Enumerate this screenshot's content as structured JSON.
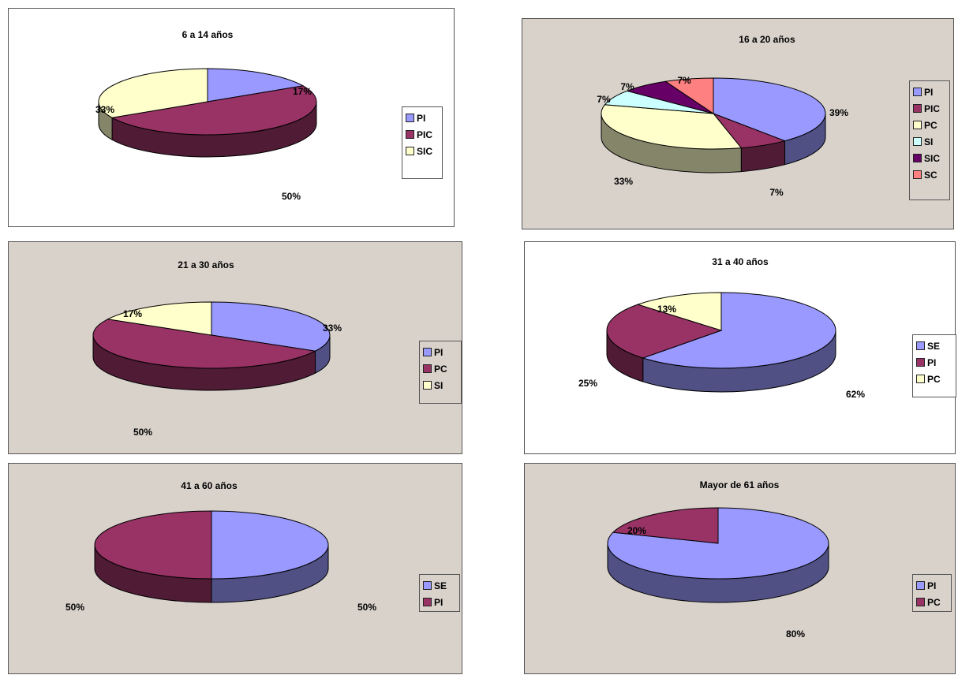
{
  "chart_data": [
    {
      "type": "pie",
      "title": "6 a 14 años",
      "categories": [
        "PI",
        "PIC",
        "SIC"
      ],
      "values": [
        17,
        50,
        33
      ],
      "labels": [
        "17%",
        "50%",
        "33%"
      ],
      "colors": [
        "#9999FF",
        "#993366",
        "#FFFFCC"
      ],
      "legend": "right",
      "background": "#FFFFFF"
    },
    {
      "type": "pie",
      "title": "16 a 20 años",
      "categories": [
        "PI",
        "PIC",
        "PC",
        "SI",
        "SIC",
        "SC"
      ],
      "values": [
        39,
        7,
        33,
        7,
        7,
        7
      ],
      "labels": [
        "39%",
        "7%",
        "33%",
        "7%",
        "7%",
        "7%"
      ],
      "colors": [
        "#9999FF",
        "#993366",
        "#FFFFCC",
        "#CCFFFF",
        "#660066",
        "#FF8080"
      ],
      "legend": "right",
      "background": "#D9D2CB"
    },
    {
      "type": "pie",
      "title": "21 a 30 años",
      "categories": [
        "PI",
        "PC",
        "SI"
      ],
      "values": [
        33,
        50,
        17
      ],
      "labels": [
        "33%",
        "50%",
        "17%"
      ],
      "colors": [
        "#9999FF",
        "#993366",
        "#FFFFCC"
      ],
      "legend": "right",
      "background": "#D9D2CB"
    },
    {
      "type": "pie",
      "title": "31 a 40 años",
      "categories": [
        "SE",
        "PI",
        "PC"
      ],
      "values": [
        62,
        25,
        13
      ],
      "labels": [
        "62%",
        "25%",
        "13%"
      ],
      "colors": [
        "#9999FF",
        "#993366",
        "#FFFFCC"
      ],
      "legend": "right",
      "background": "#FFFFFF"
    },
    {
      "type": "pie",
      "title": "41 a 60 años",
      "categories": [
        "SE",
        "PI"
      ],
      "values": [
        50,
        50
      ],
      "labels": [
        "50%",
        "50%"
      ],
      "colors": [
        "#9999FF",
        "#993366"
      ],
      "legend": "right",
      "background": "#D9D2CB"
    },
    {
      "type": "pie",
      "title": "Mayor de 61 años",
      "categories": [
        "PI",
        "PC"
      ],
      "values": [
        80,
        20
      ],
      "labels": [
        "80%",
        "20%"
      ],
      "colors": [
        "#9999FF",
        "#993366"
      ],
      "legend": "right",
      "background": "#D9D2CB"
    }
  ]
}
